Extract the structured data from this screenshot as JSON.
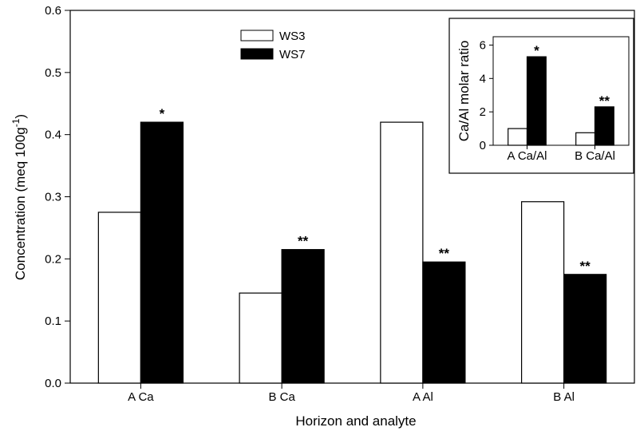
{
  "chart_data": [
    {
      "type": "bar",
      "xlabel": "Horizon and analyte",
      "ylabel": "Concentration (meq 100g",
      "ylabel_sup": "-1",
      "ylabel_close": ")",
      "ylim": [
        0,
        0.6
      ],
      "yticks": [
        "0.0",
        "0.1",
        "0.2",
        "0.3",
        "0.4",
        "0.5",
        "0.6"
      ],
      "categories": [
        "A Ca",
        "B Ca",
        "A Al",
        "B Al"
      ],
      "series": [
        {
          "name": "WS3",
          "values": [
            0.275,
            0.145,
            0.42,
            0.292
          ],
          "fill": "#ffffff"
        },
        {
          "name": "WS7",
          "values": [
            0.42,
            0.215,
            0.195,
            0.175
          ],
          "fill": "#000000"
        }
      ],
      "annotations": [
        "*",
        "**",
        "**",
        "**"
      ],
      "legend": "top-center",
      "grid": false
    },
    {
      "type": "bar",
      "inset": true,
      "ylabel": "Ca/Al molar ratio",
      "ylim": [
        0,
        6.5
      ],
      "yticks": [
        "0",
        "2",
        "4",
        "6"
      ],
      "categories": [
        "A Ca/Al",
        "B Ca/Al"
      ],
      "series": [
        {
          "name": "WS3",
          "values": [
            1.0,
            0.75
          ],
          "fill": "#ffffff"
        },
        {
          "name": "WS7",
          "values": [
            5.3,
            2.3
          ],
          "fill": "#000000"
        }
      ],
      "annotations": [
        "*",
        "**"
      ],
      "grid": false
    }
  ]
}
